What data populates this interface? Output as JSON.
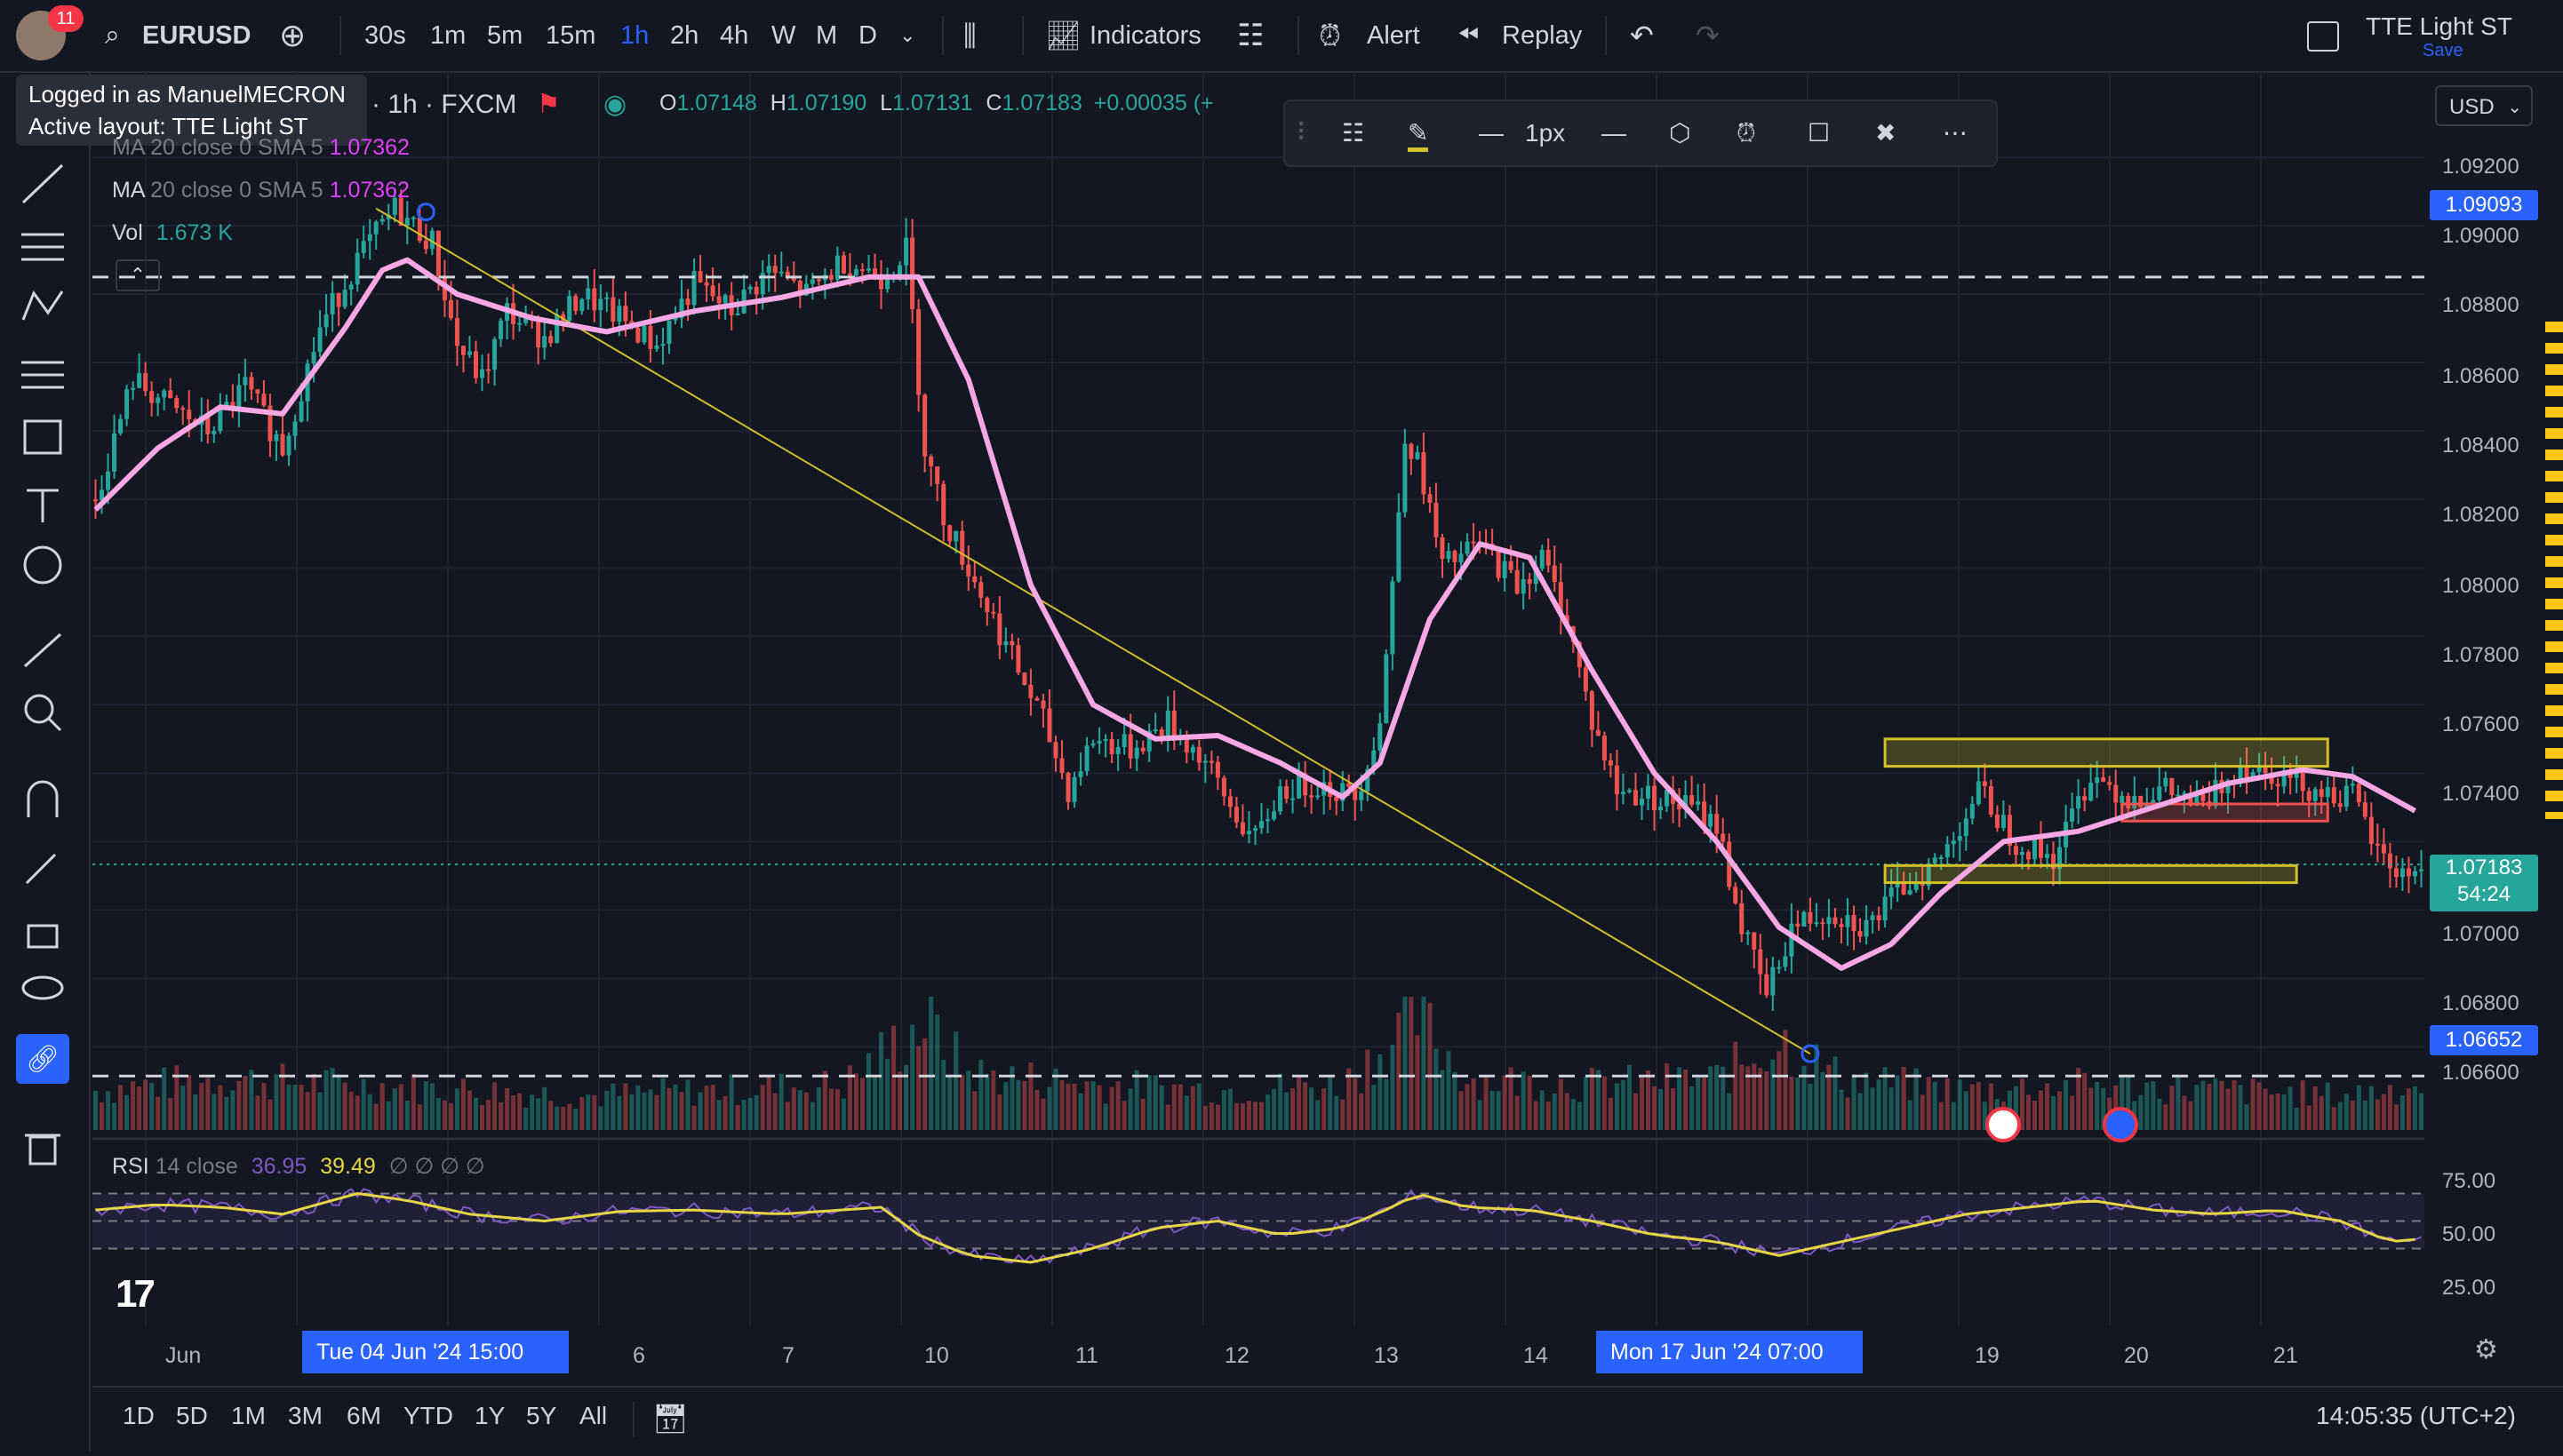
{
  "topbar": {
    "symbol": "EURUSD",
    "notif_count": "11",
    "timeframes": [
      "30s",
      "1m",
      "5m",
      "15m",
      "1h",
      "2h",
      "4h",
      "W",
      "M",
      "D"
    ],
    "active_timeframe": "1h",
    "indicators_label": "Indicators",
    "alert_label": "Alert",
    "replay_label": "Replay",
    "layout_name": "TTE Light ST",
    "save_label": "Save"
  },
  "tooltip": {
    "line1": "Logged in as ManuelMECRON",
    "line2": "Active layout: TTE Light ST"
  },
  "legend": {
    "interval_source": "· 1h · FXCM",
    "o_label": "O",
    "o_value": "1.07148",
    "h_label": "H",
    "h_value": "1.07190",
    "l_label": "L",
    "l_value": "1.07131",
    "c_label": "C",
    "c_value": "1.07183",
    "change": "+0.00035 (+",
    "ma1_label": "MA 20 close 0 SMA 5",
    "ma1_value": "1.07362",
    "ma2_label": "MA",
    "ma2_params": "20 close 0 SMA 5",
    "ma2_value": "1.07362",
    "vol_label": "Vol",
    "vol_value": "1.673 K",
    "rsi_label": "RSI",
    "rsi_params": "14 close",
    "rsi_value": "36.95",
    "rsi_ma_value": "39.49",
    "rsi_extra": "∅ ∅ ∅ ∅"
  },
  "drawing_toolbar": {
    "width_label": "1px"
  },
  "price_axis": {
    "currency": "USD",
    "ticks": [
      "1.09200",
      "1.09000",
      "1.08800",
      "1.08600",
      "1.08400",
      "1.08200",
      "1.08000",
      "1.07800",
      "1.07600",
      "1.07400",
      "1.07000",
      "1.06800",
      "1.06600"
    ],
    "tag_top": "1.09093",
    "tag_current_price": "1.07183",
    "tag_current_time": "54:24",
    "tag_bottom": "1.06652",
    "rsi_ticks": [
      "75.00",
      "50.00",
      "25.00"
    ]
  },
  "time_axis": {
    "labels": [
      "Jun",
      "6",
      "7",
      "10",
      "11",
      "12",
      "13",
      "14",
      "19",
      "20",
      "21"
    ],
    "highlight_start": "Tue 04 Jun '24   15:00",
    "highlight_end": "Mon 17 Jun '24   07:00"
  },
  "bottombar": {
    "ranges": [
      "1D",
      "5D",
      "1M",
      "3M",
      "6M",
      "YTD",
      "1Y",
      "5Y",
      "All"
    ],
    "clock": "14:05:35 (UTC+2)"
  },
  "colors": {
    "background": "#131722",
    "up": "#26a69a",
    "down": "#ef5350",
    "ma": "#f7a8e4",
    "trendline": "#d4c027",
    "rsi": "#7e57c2",
    "rsi_ma": "#e6d545",
    "accent": "#2962ff"
  },
  "chart_data": {
    "type": "candlestick",
    "symbol": "EURUSD",
    "interval": "1h",
    "ylim": [
      1.0655,
      1.0925
    ],
    "close_path": [
      [
        0,
        1.0825
      ],
      [
        6,
        1.086
      ],
      [
        12,
        1.0852
      ],
      [
        18,
        1.0845
      ],
      [
        24,
        1.0858
      ],
      [
        30,
        1.084
      ],
      [
        36,
        1.0875
      ],
      [
        42,
        1.0895
      ],
      [
        48,
        1.091
      ],
      [
        54,
        1.09
      ],
      [
        58,
        1.087
      ],
      [
        62,
        1.086
      ],
      [
        66,
        1.088
      ],
      [
        72,
        1.0872
      ],
      [
        78,
        1.0885
      ],
      [
        84,
        1.0878
      ],
      [
        90,
        1.087
      ],
      [
        96,
        1.0888
      ],
      [
        102,
        1.088
      ],
      [
        108,
        1.0892
      ],
      [
        114,
        1.0885
      ],
      [
        120,
        1.0895
      ],
      [
        126,
        1.089
      ],
      [
        130,
        1.0898
      ],
      [
        133,
        1.084
      ],
      [
        136,
        1.082
      ],
      [
        140,
        1.0805
      ],
      [
        144,
        1.079
      ],
      [
        148,
        1.0775
      ],
      [
        152,
        1.076
      ],
      [
        156,
        1.074
      ],
      [
        160,
        1.0755
      ],
      [
        166,
        1.0752
      ],
      [
        172,
        1.076
      ],
      [
        178,
        1.0748
      ],
      [
        182,
        1.0735
      ],
      [
        186,
        1.0725
      ],
      [
        190,
        1.074
      ],
      [
        196,
        1.0742
      ],
      [
        202,
        1.0738
      ],
      [
        206,
        1.076
      ],
      [
        208,
        1.08
      ],
      [
        210,
        1.0845
      ],
      [
        213,
        1.083
      ],
      [
        216,
        1.0805
      ],
      [
        222,
        1.0812
      ],
      [
        228,
        1.08
      ],
      [
        232,
        1.0808
      ],
      [
        236,
        1.079
      ],
      [
        240,
        1.076
      ],
      [
        244,
        1.074
      ],
      [
        250,
        1.0738
      ],
      [
        256,
        1.0735
      ],
      [
        260,
        1.073
      ],
      [
        264,
        1.07
      ],
      [
        268,
        1.068
      ],
      [
        272,
        1.07
      ],
      [
        278,
        1.0705
      ],
      [
        284,
        1.07
      ],
      [
        290,
        1.0712
      ],
      [
        296,
        1.072
      ],
      [
        302,
        1.074
      ],
      [
        308,
        1.0725
      ],
      [
        314,
        1.072
      ],
      [
        320,
        1.0745
      ],
      [
        326,
        1.0738
      ],
      [
        332,
        1.074
      ],
      [
        338,
        1.0735
      ],
      [
        344,
        1.0748
      ],
      [
        350,
        1.0745
      ],
      [
        356,
        1.074
      ],
      [
        362,
        1.0738
      ],
      [
        366,
        1.0722
      ],
      [
        370,
        1.0715
      ],
      [
        373,
        1.0718
      ]
    ],
    "ma_path": [
      [
        0,
        1.0822
      ],
      [
        10,
        1.084
      ],
      [
        20,
        1.0852
      ],
      [
        30,
        1.085
      ],
      [
        40,
        1.0875
      ],
      [
        46,
        1.0892
      ],
      [
        50,
        1.0895
      ],
      [
        58,
        1.0885
      ],
      [
        70,
        1.0878
      ],
      [
        82,
        1.0874
      ],
      [
        96,
        1.088
      ],
      [
        110,
        1.0884
      ],
      [
        124,
        1.089
      ],
      [
        132,
        1.089
      ],
      [
        140,
        1.086
      ],
      [
        150,
        1.08
      ],
      [
        160,
        1.0765
      ],
      [
        170,
        1.0755
      ],
      [
        180,
        1.0756
      ],
      [
        190,
        1.0748
      ],
      [
        200,
        1.0738
      ],
      [
        206,
        1.0748
      ],
      [
        214,
        1.079
      ],
      [
        222,
        1.0812
      ],
      [
        230,
        1.0808
      ],
      [
        240,
        1.0775
      ],
      [
        250,
        1.0745
      ],
      [
        260,
        1.0725
      ],
      [
        270,
        1.07
      ],
      [
        280,
        1.0688
      ],
      [
        288,
        1.0695
      ],
      [
        296,
        1.071
      ],
      [
        306,
        1.0725
      ],
      [
        318,
        1.0728
      ],
      [
        330,
        1.0735
      ],
      [
        342,
        1.0742
      ],
      [
        354,
        1.0746
      ],
      [
        362,
        1.0744
      ],
      [
        370,
        1.0736
      ],
      [
        373,
        1.0733
      ]
    ],
    "volume_path": [
      [
        0,
        0.35
      ],
      [
        20,
        0.45
      ],
      [
        40,
        0.4
      ],
      [
        60,
        0.35
      ],
      [
        80,
        0.3
      ],
      [
        100,
        0.35
      ],
      [
        120,
        0.4
      ],
      [
        133,
        0.95
      ],
      [
        140,
        0.5
      ],
      [
        160,
        0.4
      ],
      [
        180,
        0.35
      ],
      [
        200,
        0.4
      ],
      [
        210,
        0.9
      ],
      [
        212,
        1.0
      ],
      [
        220,
        0.45
      ],
      [
        240,
        0.4
      ],
      [
        260,
        0.45
      ],
      [
        270,
        0.8
      ],
      [
        280,
        0.45
      ],
      [
        300,
        0.35
      ],
      [
        320,
        0.4
      ],
      [
        340,
        0.35
      ],
      [
        360,
        0.3
      ],
      [
        373,
        0.4
      ]
    ],
    "rsi_path": [
      [
        0,
        58
      ],
      [
        10,
        62
      ],
      [
        20,
        60
      ],
      [
        30,
        55
      ],
      [
        42,
        70
      ],
      [
        50,
        65
      ],
      [
        60,
        55
      ],
      [
        72,
        50
      ],
      [
        84,
        57
      ],
      [
        96,
        58
      ],
      [
        110,
        55
      ],
      [
        126,
        60
      ],
      [
        132,
        40
      ],
      [
        140,
        25
      ],
      [
        150,
        20
      ],
      [
        160,
        30
      ],
      [
        170,
        45
      ],
      [
        180,
        50
      ],
      [
        190,
        40
      ],
      [
        200,
        45
      ],
      [
        208,
        60
      ],
      [
        212,
        70
      ],
      [
        220,
        60
      ],
      [
        230,
        58
      ],
      [
        240,
        50
      ],
      [
        250,
        40
      ],
      [
        260,
        35
      ],
      [
        270,
        25
      ],
      [
        280,
        35
      ],
      [
        290,
        45
      ],
      [
        300,
        55
      ],
      [
        310,
        60
      ],
      [
        320,
        65
      ],
      [
        330,
        58
      ],
      [
        340,
        55
      ],
      [
        350,
        58
      ],
      [
        360,
        50
      ],
      [
        368,
        35
      ],
      [
        373,
        37
      ]
    ],
    "trendline": {
      "from": [
        45,
        1.091
      ],
      "to": [
        275,
        1.0663
      ]
    },
    "horizontal_levels": [
      1.089,
      1.06565
    ],
    "rectangles": [
      {
        "x_from": 287,
        "x_to": 358,
        "y_low": 1.0747,
        "y_high": 1.0755,
        "color": "#d4c027"
      },
      {
        "x_from": 287,
        "x_to": 353,
        "y_low": 1.0713,
        "y_high": 1.0718,
        "color": "#d4c027"
      },
      {
        "x_from": 325,
        "x_to": 358,
        "y_low": 1.0731,
        "y_high": 1.0736,
        "color": "#ef5350"
      }
    ],
    "rsi_levels": [
      70,
      50,
      30
    ],
    "markers": [
      {
        "x": 53,
        "y": 1.0909
      },
      {
        "x": 275,
        "y": 1.0663
      }
    ]
  }
}
